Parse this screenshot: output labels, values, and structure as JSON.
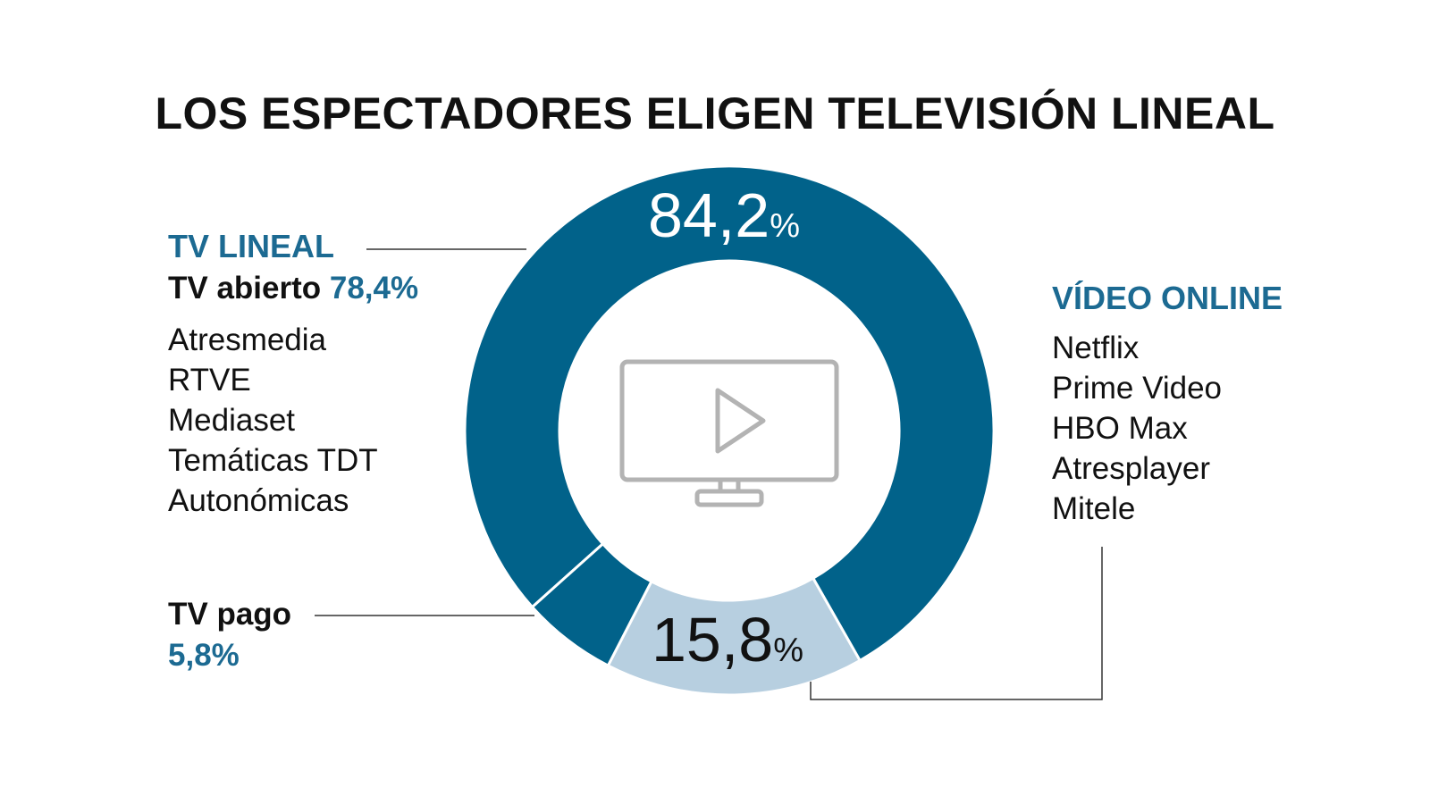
{
  "title": "LOS ESPECTADORES ELIGEN TELEVISIÓN LINEAL",
  "colors": {
    "dark_blue": "#01628a",
    "light_blue": "#b7cfe0",
    "accent_text": "#1c6a92",
    "leader": "#333333",
    "icon": "#b3b3b3"
  },
  "icon": "tv-play-icon",
  "chart_data": {
    "type": "pie",
    "variant": "donut",
    "slices": [
      {
        "name": "TV abierto",
        "value": 78.4,
        "color": "#01628a"
      },
      {
        "name": "TV pago",
        "value": 5.8,
        "color": "#01628a"
      },
      {
        "name": "Vídeo online",
        "value": 15.8,
        "color": "#b7cfe0"
      }
    ],
    "data_labels": [
      {
        "value": "84,2",
        "unit": "%"
      },
      {
        "value": "15,8",
        "unit": "%"
      }
    ]
  },
  "linear": {
    "heading": "TV LINEAL",
    "open_label": "TV abierto",
    "open_value": "78,4%",
    "channels": [
      "Atresmedia",
      "RTVE",
      "Mediaset",
      "Temáticas TDT",
      "Autonómicas"
    ],
    "pay_label": "TV pago",
    "pay_value": "5,8%"
  },
  "online": {
    "heading": "VÍDEO ONLINE",
    "services": [
      "Netflix",
      "Prime Video",
      "HBO Max",
      "Atresplayer",
      "Mitele"
    ]
  }
}
